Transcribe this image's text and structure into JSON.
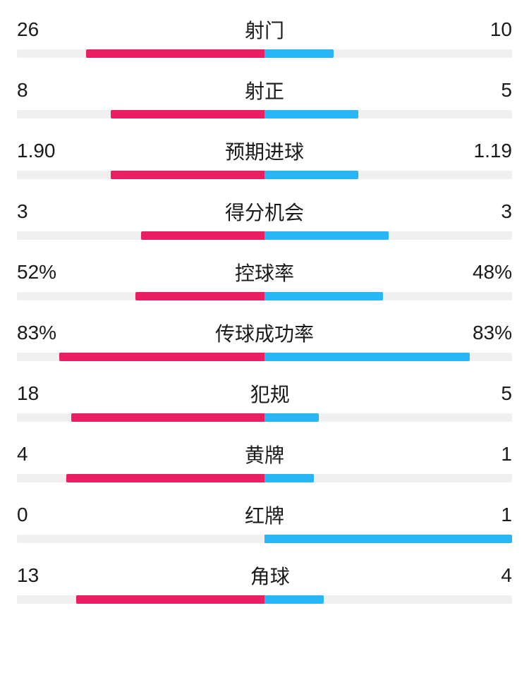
{
  "colors": {
    "left_bar": "#e91e63",
    "right_bar": "#29b6f6",
    "track": "#f0f0f0",
    "text": "#1a1a1a",
    "background": "#ffffff"
  },
  "stats": [
    {
      "label": "射门",
      "left_value": "26",
      "right_value": "10",
      "left_pct": 72,
      "right_pct": 28
    },
    {
      "label": "射正",
      "left_value": "8",
      "right_value": "5",
      "left_pct": 62,
      "right_pct": 38
    },
    {
      "label": "预期进球",
      "left_value": "1.90",
      "right_value": "1.19",
      "left_pct": 62,
      "right_pct": 38
    },
    {
      "label": "得分机会",
      "left_value": "3",
      "right_value": "3",
      "left_pct": 50,
      "right_pct": 50
    },
    {
      "label": "控球率",
      "left_value": "52%",
      "right_value": "48%",
      "left_pct": 52,
      "right_pct": 48
    },
    {
      "label": "传球成功率",
      "left_value": "83%",
      "right_value": "83%",
      "left_pct": 83,
      "right_pct": 83
    },
    {
      "label": "犯规",
      "left_value": "18",
      "right_value": "5",
      "left_pct": 78,
      "right_pct": 22
    },
    {
      "label": "黄牌",
      "left_value": "4",
      "right_value": "1",
      "left_pct": 80,
      "right_pct": 20
    },
    {
      "label": "红牌",
      "left_value": "0",
      "right_value": "1",
      "left_pct": 0,
      "right_pct": 100
    },
    {
      "label": "角球",
      "left_value": "13",
      "right_value": "4",
      "left_pct": 76,
      "right_pct": 24
    }
  ]
}
